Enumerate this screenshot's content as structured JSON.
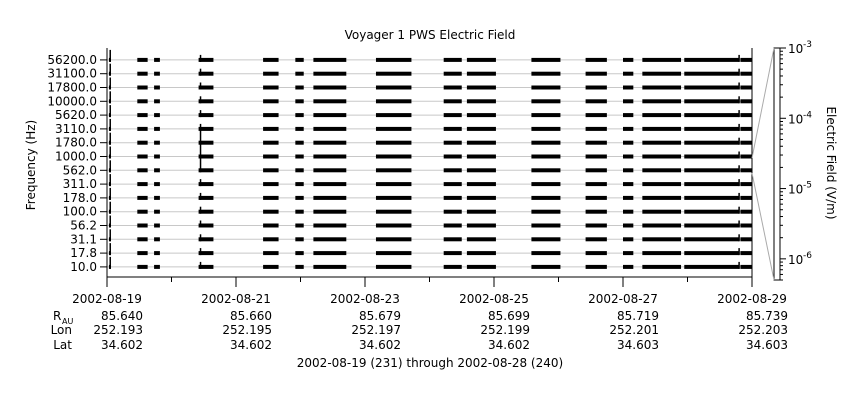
{
  "chart_data": {
    "type": "line",
    "title": "Voyager 1 PWS Electric Field",
    "ylabel": "Frequency (Hz)",
    "y2label": "Electric Field (V/m)",
    "xlabel": "2002-08-19 (231) through 2002-08-28 (240)",
    "channels_hz": [
      "56200.0",
      "31100.0",
      "17800.0",
      "10000.0",
      "5620.0",
      "3110.0",
      "1780.0",
      "1000.0",
      "562.0",
      "311.0",
      "178.0",
      "100.0",
      "56.2",
      "31.1",
      "17.8",
      "10.0"
    ],
    "colorbar": {
      "scale": "log",
      "range": [
        5e-07,
        0.001
      ],
      "ticks": [
        {
          "value": 0.001,
          "mant": "10",
          "exp": "-3"
        },
        {
          "value": 0.0001,
          "mant": "10",
          "exp": "-4"
        },
        {
          "value": 1e-05,
          "mant": "10",
          "exp": "-5"
        },
        {
          "value": 1e-06,
          "mant": "10",
          "exp": "-6"
        }
      ]
    },
    "x_range_days": [
      0,
      10
    ],
    "x_ticks": [
      {
        "date": "2002-08-19",
        "day": 0,
        "r": "85.640",
        "lon": "252.193",
        "lat": "34.602"
      },
      {
        "date": "2002-08-21",
        "day": 2,
        "r": "85.660",
        "lon": "252.195",
        "lat": "34.602"
      },
      {
        "date": "2002-08-23",
        "day": 4,
        "r": "85.679",
        "lon": "252.197",
        "lat": "34.602"
      },
      {
        "date": "2002-08-25",
        "day": 6,
        "r": "85.699",
        "lon": "252.199",
        "lat": "34.602"
      },
      {
        "date": "2002-08-27",
        "day": 8,
        "r": "85.719",
        "lon": "252.201",
        "lat": "34.603"
      },
      {
        "date": "2002-08-29",
        "day": 10,
        "r": "85.739",
        "lon": "252.203",
        "lat": "34.603"
      }
    ],
    "row_labels": {
      "r": "R",
      "r_sub": "AU",
      "lon": "Lon",
      "lat": "Lat"
    },
    "data_segments_days": [
      [
        0.03,
        0.06
      ],
      [
        0.47,
        0.63
      ],
      [
        0.73,
        0.82
      ],
      [
        1.42,
        1.65
      ],
      [
        2.42,
        2.66
      ],
      [
        2.92,
        3.05
      ],
      [
        3.2,
        3.71
      ],
      [
        4.17,
        4.72
      ],
      [
        5.22,
        5.5
      ],
      [
        5.58,
        6.03
      ],
      [
        6.58,
        7.03
      ],
      [
        7.42,
        7.75
      ],
      [
        8.0,
        8.16
      ],
      [
        8.3,
        8.9
      ],
      [
        8.95,
        9.8
      ],
      [
        9.82,
        10.0
      ]
    ]
  }
}
